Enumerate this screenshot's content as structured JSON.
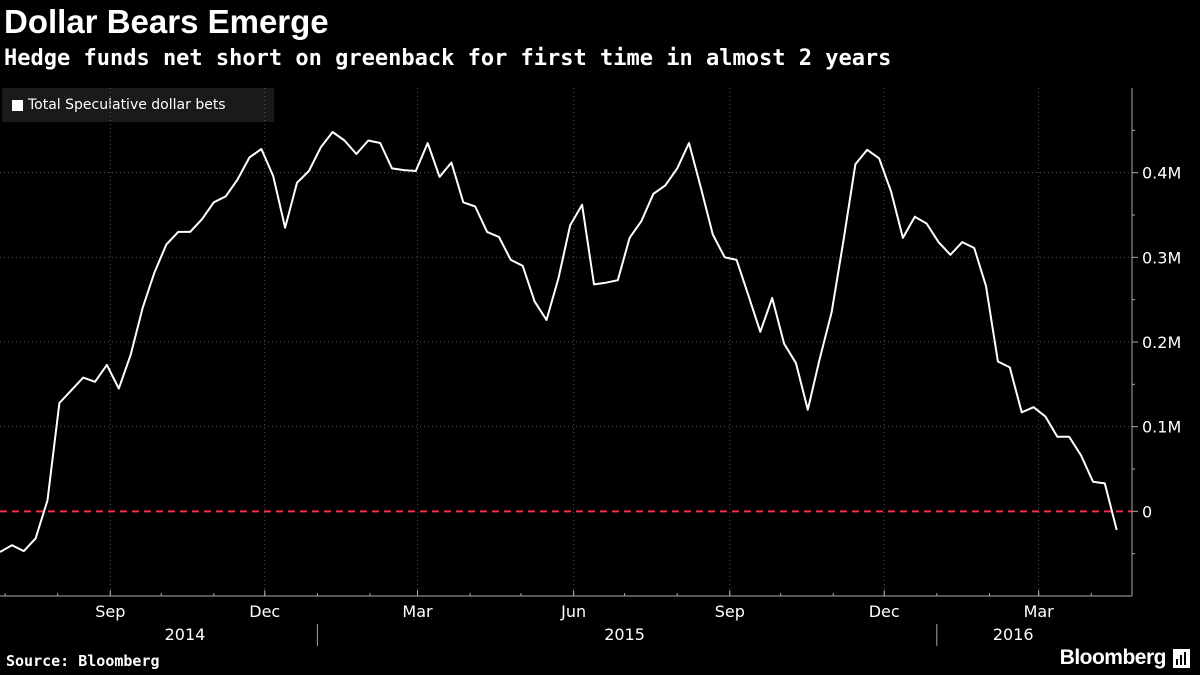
{
  "title": "Dollar Bears Emerge",
  "subtitle": "Hedge funds net short on greenback for first time in almost 2 years",
  "source": "Source: Bloomberg",
  "brand": "Bloomberg",
  "colors": {
    "background": "#000000",
    "line": "#ffffff",
    "zero_line": "#e8334a",
    "grid": "#555555"
  },
  "chart_data": {
    "type": "line",
    "title": "Dollar Bears Emerge",
    "subtitle": "Hedge funds net short on greenback for first time in almost 2 years",
    "legend": {
      "position": "top-left",
      "entries": [
        "Total Speculative dollar bets"
      ]
    },
    "grid": true,
    "ylim": [
      -100000,
      500000
    ],
    "yticks": [
      {
        "value": 0,
        "label": "0"
      },
      {
        "value": 100000,
        "label": "0.1M"
      },
      {
        "value": 200000,
        "label": "0.2M"
      },
      {
        "value": 300000,
        "label": "0.3M"
      },
      {
        "value": 400000,
        "label": "0.4M"
      }
    ],
    "xlim": [
      "2014-06-28",
      "2016-04-25"
    ],
    "xticks": [
      {
        "date": "2014-09-01",
        "label": "Sep"
      },
      {
        "date": "2014-12-01",
        "label": "Dec"
      },
      {
        "date": "2015-03-01",
        "label": "Mar"
      },
      {
        "date": "2015-06-01",
        "label": "Jun"
      },
      {
        "date": "2015-09-01",
        "label": "Sep"
      },
      {
        "date": "2015-12-01",
        "label": "Dec"
      },
      {
        "date": "2016-03-01",
        "label": "Mar"
      }
    ],
    "year_labels": [
      {
        "date": "2014-10-15",
        "label": "2014"
      },
      {
        "date": "2015-07-01",
        "label": "2015"
      },
      {
        "date": "2016-02-15",
        "label": "2016"
      }
    ],
    "year_boundaries": [
      "2015-01-01",
      "2016-01-01"
    ],
    "reference_lines": [
      {
        "value": 0,
        "style": "dashed",
        "color": "#e8334a"
      }
    ],
    "series": [
      {
        "name": "Total Speculative dollar bets",
        "x": [
          "2014-06-28",
          "2014-07-05",
          "2014-07-12",
          "2014-07-19",
          "2014-07-26",
          "2014-08-02",
          "2014-08-09",
          "2014-08-16",
          "2014-08-23",
          "2014-08-30",
          "2014-09-06",
          "2014-09-13",
          "2014-09-20",
          "2014-09-27",
          "2014-10-04",
          "2014-10-11",
          "2014-10-18",
          "2014-10-25",
          "2014-11-01",
          "2014-11-08",
          "2014-11-15",
          "2014-11-22",
          "2014-11-29",
          "2014-12-06",
          "2014-12-13",
          "2014-12-20",
          "2014-12-27",
          "2015-01-03",
          "2015-01-10",
          "2015-01-17",
          "2015-01-24",
          "2015-01-31",
          "2015-02-07",
          "2015-02-14",
          "2015-02-21",
          "2015-02-28",
          "2015-03-07",
          "2015-03-14",
          "2015-03-21",
          "2015-03-28",
          "2015-04-04",
          "2015-04-11",
          "2015-04-18",
          "2015-04-25",
          "2015-05-02",
          "2015-05-09",
          "2015-05-16",
          "2015-05-23",
          "2015-05-30",
          "2015-06-06",
          "2015-06-13",
          "2015-06-20",
          "2015-06-27",
          "2015-07-04",
          "2015-07-11",
          "2015-07-18",
          "2015-07-25",
          "2015-08-01",
          "2015-08-08",
          "2015-08-15",
          "2015-08-22",
          "2015-08-29",
          "2015-09-05",
          "2015-09-12",
          "2015-09-19",
          "2015-09-26",
          "2015-10-03",
          "2015-10-10",
          "2015-10-17",
          "2015-10-24",
          "2015-10-31",
          "2015-11-07",
          "2015-11-14",
          "2015-11-21",
          "2015-11-28",
          "2015-12-05",
          "2015-12-12",
          "2015-12-19",
          "2015-12-26",
          "2016-01-02",
          "2016-01-09",
          "2016-01-16",
          "2016-01-23",
          "2016-01-30",
          "2016-02-06",
          "2016-02-13",
          "2016-02-20",
          "2016-02-27",
          "2016-03-05",
          "2016-03-12",
          "2016-03-19",
          "2016-03-26",
          "2016-04-02",
          "2016-04-09",
          "2016-04-16"
        ],
        "values": [
          -48000,
          -40000,
          -47000,
          -32000,
          13000,
          128000,
          143000,
          158000,
          153000,
          173000,
          145000,
          185000,
          240000,
          282000,
          315000,
          330000,
          330000,
          345000,
          365000,
          372000,
          392000,
          418000,
          428000,
          396000,
          335000,
          388000,
          402000,
          430000,
          448000,
          438000,
          422000,
          438000,
          435000,
          405000,
          403000,
          402000,
          435000,
          395000,
          412000,
          365000,
          360000,
          330000,
          324000,
          297000,
          290000,
          248000,
          226000,
          275000,
          338000,
          362000,
          268000,
          270000,
          273000,
          323000,
          343000,
          375000,
          385000,
          405000,
          435000,
          382000,
          327000,
          300000,
          297000,
          255000,
          212000,
          252000,
          198000,
          175000,
          120000,
          180000,
          235000,
          320000,
          410000,
          427000,
          417000,
          378000,
          323000,
          348000,
          340000,
          318000,
          303000,
          318000,
          311000,
          266000,
          177000,
          170000,
          117000,
          123000,
          112000,
          88000,
          88000,
          66000,
          35000,
          33000,
          -22000
        ]
      }
    ]
  }
}
